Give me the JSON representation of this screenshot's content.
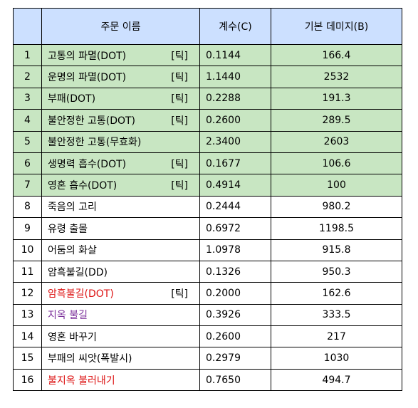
{
  "header": {
    "num": "",
    "name": "주문 이름",
    "coef": "계수(C)",
    "base": "기본 데미지(B)"
  },
  "colors": {
    "header_bg": "#cce0ff",
    "dot_row_bg": "#c8e6c2",
    "red_text": "#dd1111",
    "purple_text": "#7b2f9a"
  },
  "rows": [
    {
      "n": "1",
      "name": "고통의 파멸(DOT)",
      "tick": "[틱]",
      "coef": "0.1144",
      "base": "166.4",
      "dot": true
    },
    {
      "n": "2",
      "name": "운명의 파멸(DOT)",
      "tick": "[틱]",
      "coef": "1.1440",
      "base": "2532",
      "dot": true
    },
    {
      "n": "3",
      "name": "부패(DOT)",
      "tick": "[틱]",
      "coef": "0.2288",
      "base": "191.3",
      "dot": true
    },
    {
      "n": "4",
      "name": "불안정한 고통(DOT)",
      "tick": "[틱]",
      "coef": "0.2600",
      "base": "289.5",
      "dot": true
    },
    {
      "n": "5",
      "name": "불안정한 고통(무효화)",
      "tick": "",
      "coef": "2.3400",
      "base": "2603",
      "dot": true
    },
    {
      "n": "6",
      "name": "생명력 흡수(DOT)",
      "tick": "[틱]",
      "coef": "0.1677",
      "base": "106.6",
      "dot": true
    },
    {
      "n": "7",
      "name": "영혼 흡수(DOT)",
      "tick": "[틱]",
      "coef": "0.4914",
      "base": "100",
      "dot": true
    },
    {
      "n": "8",
      "name": "죽음의 고리",
      "tick": "",
      "coef": "0.2444",
      "base": "980.2",
      "dot": false
    },
    {
      "n": "9",
      "name": "유령 출몰",
      "tick": "",
      "coef": "0.6972",
      "base": "1198.5",
      "dot": false
    },
    {
      "n": "10",
      "name": "어둠의 화살",
      "tick": "",
      "coef": "1.0978",
      "base": "915.8",
      "dot": false
    },
    {
      "n": "11",
      "name": "암흑불길(DD)",
      "tick": "",
      "coef": "0.1326",
      "base": "950.3",
      "dot": false
    },
    {
      "n": "12",
      "name": "암흑불길(DOT)",
      "tick": "[틱]",
      "coef": "0.2000",
      "base": "162.6",
      "dot": false,
      "color": "red"
    },
    {
      "n": "13",
      "name": "지옥 불길",
      "tick": "",
      "coef": "0.3926",
      "base": "333.5",
      "dot": false,
      "color": "purple"
    },
    {
      "n": "14",
      "name": "영혼 바꾸기",
      "tick": "",
      "coef": "0.2600",
      "base": "217",
      "dot": false
    },
    {
      "n": "15",
      "name": "부패의 씨앗(폭발시)",
      "tick": "",
      "coef": "0.2979",
      "base": "1030",
      "dot": false
    },
    {
      "n": "16",
      "name": "불지옥 불러내기",
      "tick": "",
      "coef": "0.7650",
      "base": "494.7",
      "dot": false,
      "color": "red"
    }
  ]
}
